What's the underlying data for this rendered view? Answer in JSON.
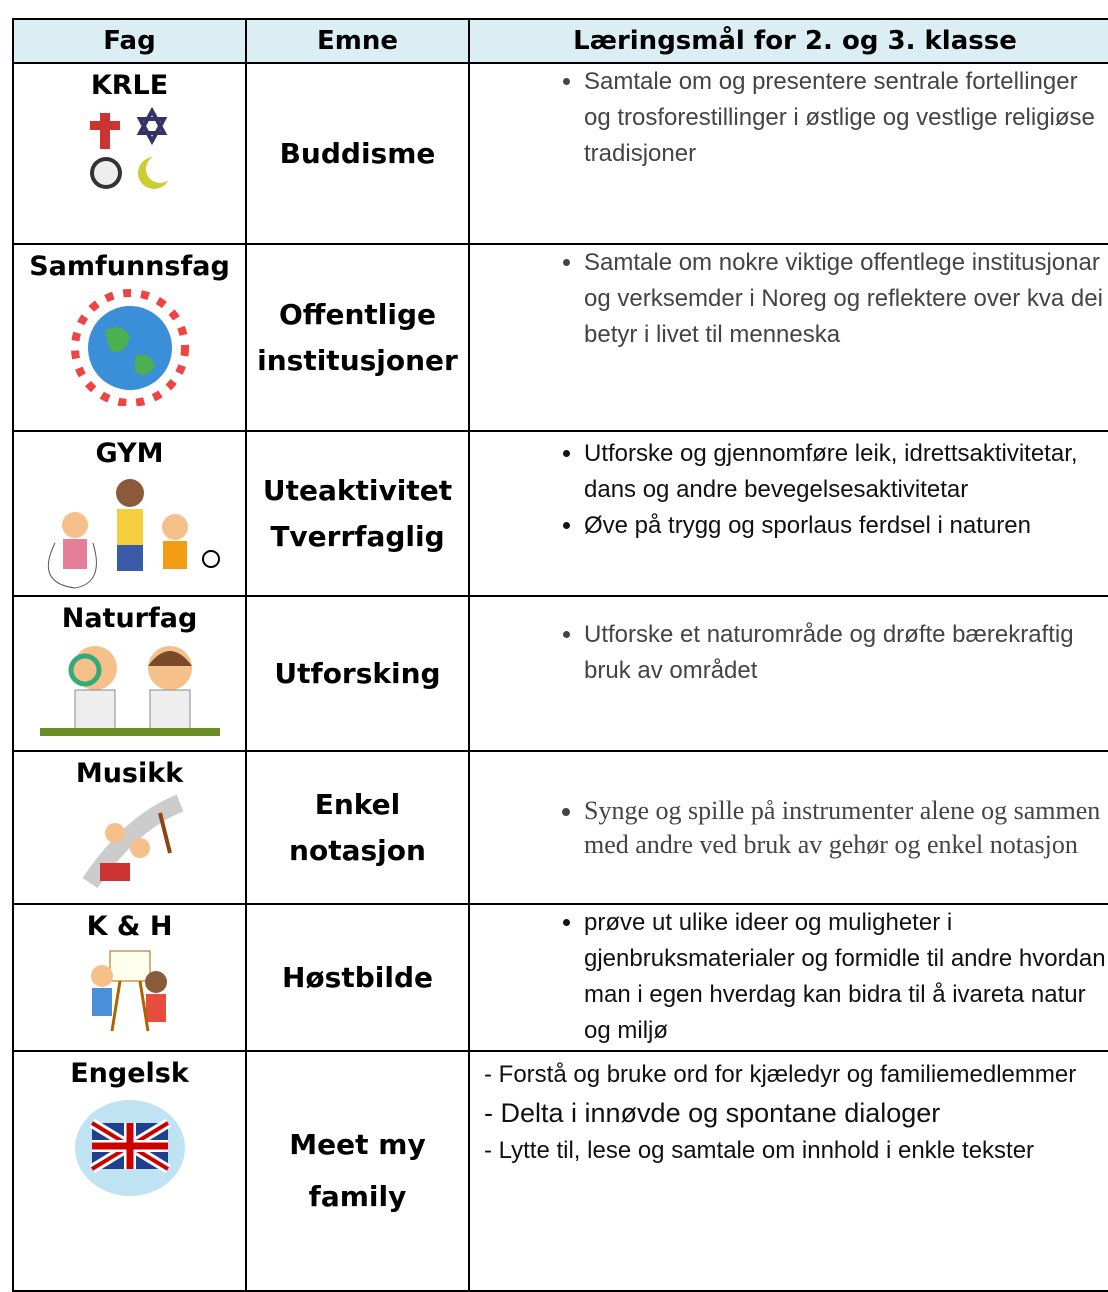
{
  "table": {
    "header": [
      "Fag",
      "Emne",
      "Læringsmål for 2. og 3. klasse"
    ],
    "rows": [
      {
        "fag": "KRLE",
        "emne": [
          "Buddisme"
        ],
        "goals": [
          "Samtale om og presentere sentrale fortellinger og trosforestillinger i østlige og vestlige religiøse tradisjoner"
        ]
      },
      {
        "fag": "Samfunnsfag",
        "emne": [
          "Offentlige",
          "institusjoner"
        ],
        "goals": [
          "Samtale om nokre viktige offentlege institusjonar og verksemder i Noreg og reflektere over kva dei betyr i livet til menneska"
        ]
      },
      {
        "fag": "GYM",
        "emne": [
          "Uteaktivitet",
          "Tverrfaglig"
        ],
        "goals": [
          "Utforske og gjennomføre leik, idrettsaktivitetar, dans og andre bevegelsesaktivitetar",
          "Øve på trygg og sporlaus ferdsel i naturen"
        ]
      },
      {
        "fag": "Naturfag",
        "emne": [
          "Utforsking"
        ],
        "goals": [
          "Utforske et naturområde og drøfte bærekraftig bruk av området"
        ]
      },
      {
        "fag": "Musikk",
        "emne": [
          "Enkel",
          "notasjon"
        ],
        "goals": [
          "Synge og spille på instrumenter alene og sammen med andre ved bruk av gehør og enkel notasjon"
        ]
      },
      {
        "fag": "K & H",
        "emne": [
          "Høstbilde"
        ],
        "goals": [
          "prøve ut ulike ideer og muligheter i gjenbruksmaterialer og formidle til andre hvordan man i egen hverdag kan bidra til å ivareta natur og miljø"
        ]
      },
      {
        "fag": "Engelsk",
        "emne": [
          "Meet my",
          "family"
        ],
        "notes": [
          "- Forstå og bruke ord for kjæledyr og familiemedlemmer",
          "- Delta i innøvde og spontane dialoger",
          "- Lytte til, lese og samtale om innhold i enkle tekster"
        ]
      }
    ]
  }
}
